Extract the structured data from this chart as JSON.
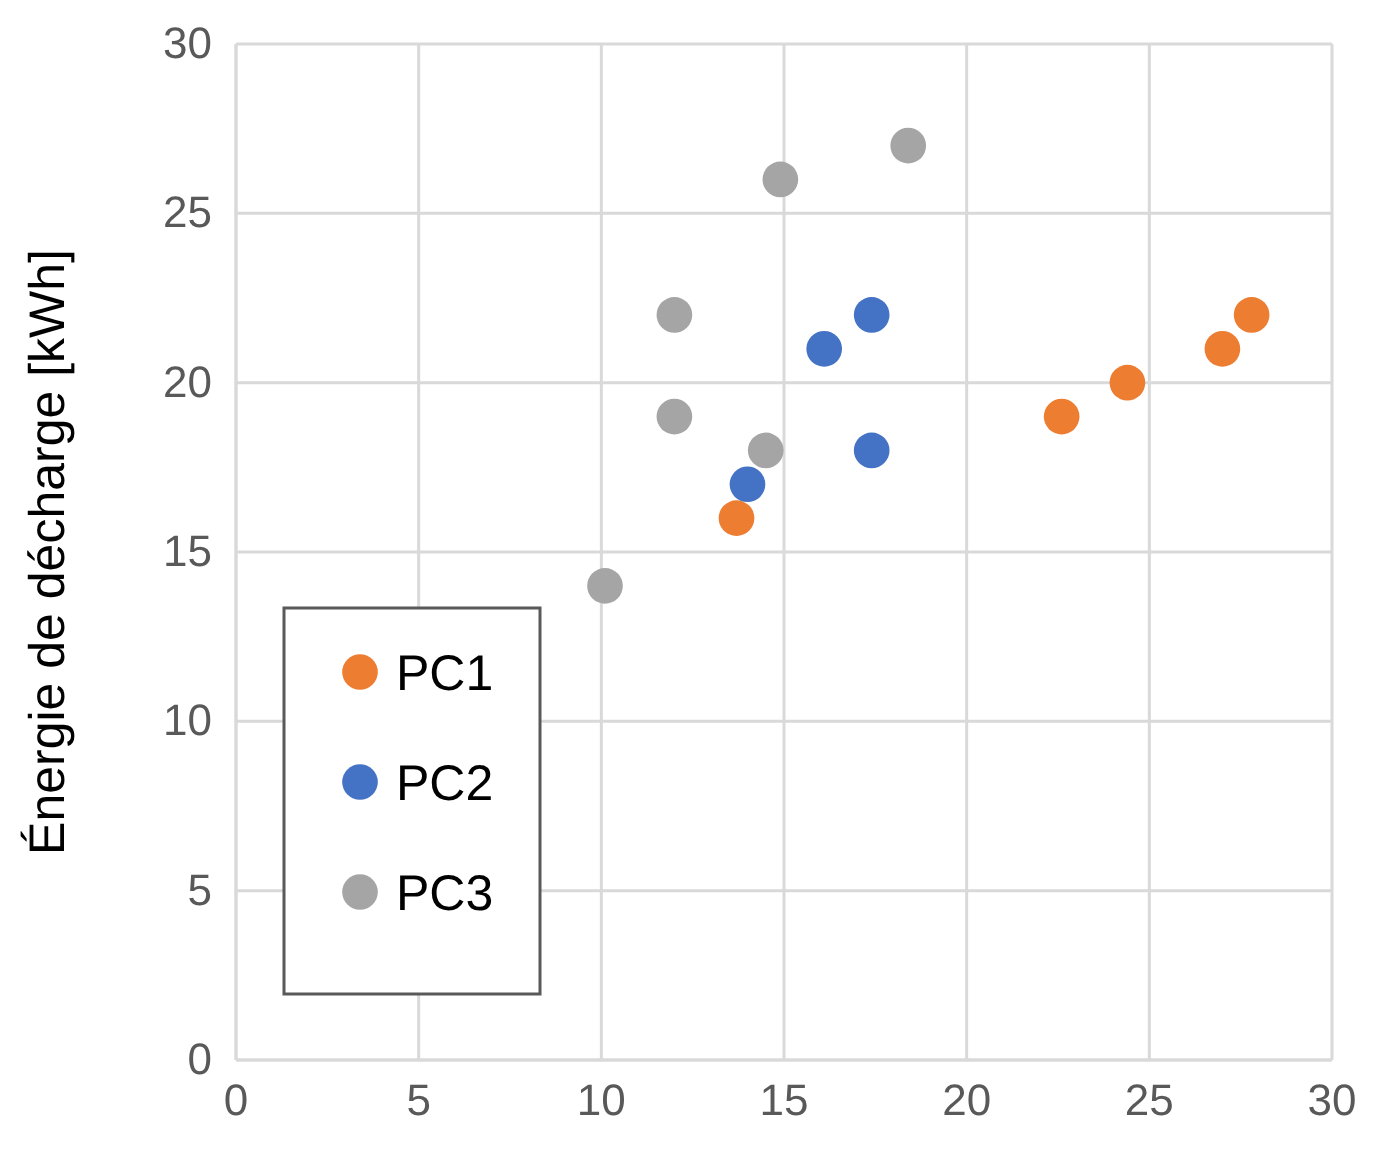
{
  "chart_data": {
    "type": "scatter",
    "ylabel": "Énergie de décharge [kWh]",
    "xlim": [
      0,
      30
    ],
    "xticks": [
      0,
      5,
      10,
      15,
      20,
      25,
      30
    ],
    "ylim": [
      0,
      30
    ],
    "yticks": [
      0,
      5,
      10,
      15,
      20,
      25,
      30
    ],
    "grid": true,
    "legend": "bottom left",
    "marker": "circle",
    "series": [
      {
        "name": "PC1",
        "color": "#ed7d31",
        "x": [
          13.7,
          22.6,
          24.4,
          27,
          27.8
        ],
        "values": [
          16,
          19,
          20,
          21,
          22
        ]
      },
      {
        "name": "PC2",
        "color": "#4472c4",
        "x": [
          14,
          16.1,
          17.4,
          17.4
        ],
        "values": [
          17,
          21,
          22,
          18
        ]
      },
      {
        "name": "PC3",
        "color": "#a5a5a5",
        "x": [
          10.1,
          12,
          12,
          14.5,
          14.9,
          18.4
        ],
        "values": [
          14,
          19,
          22,
          18,
          26,
          27
        ]
      }
    ]
  }
}
